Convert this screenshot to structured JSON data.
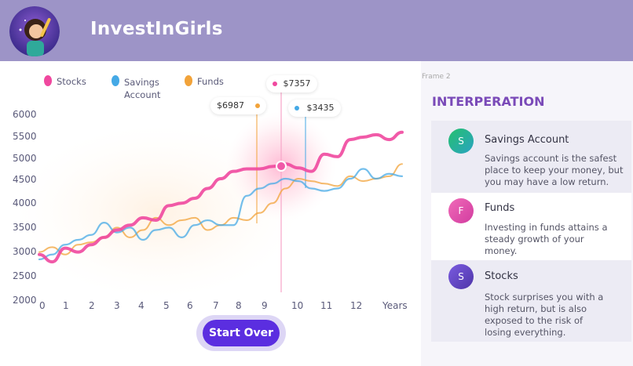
{
  "header": {
    "brand": "InvestInGirls",
    "bg_color": "#9d94c7"
  },
  "legend": [
    {
      "label": "Stocks",
      "color": "#f0489f"
    },
    {
      "label": "Savings",
      "label2": "Account",
      "color": "#45a9e6"
    },
    {
      "label": "Funds",
      "color": "#f2a33a"
    }
  ],
  "chart_data": {
    "type": "line",
    "x_ticks": [
      "0",
      "1",
      "2",
      "3",
      "4",
      "5",
      "6",
      "7",
      "8",
      "9",
      "10",
      "11",
      "12",
      "Years"
    ],
    "y_ticks": [
      "6000",
      "5500",
      "5000",
      "4500",
      "4000",
      "3500",
      "3000",
      "2500",
      "2000"
    ],
    "ylim": [
      2000,
      6000
    ],
    "series": [
      {
        "name": "Stocks",
        "color": "#f0489f",
        "x": [
          0,
          0.5,
          1,
          1.5,
          2,
          2.5,
          3,
          3.5,
          4,
          4.5,
          5,
          5.5,
          6,
          6.5,
          7,
          7.5,
          8,
          8.5,
          9,
          9.5,
          10,
          10.5,
          11,
          11.5,
          12,
          12.5,
          13,
          13.5,
          14
        ],
        "y": [
          2950,
          2800,
          3080,
          3000,
          3150,
          3300,
          3450,
          3550,
          3700,
          3650,
          3950,
          4000,
          4100,
          4300,
          4500,
          4650,
          4700,
          4700,
          4750,
          4800,
          4720,
          4650,
          5000,
          4950,
          5300,
          5350,
          5400,
          5300,
          5450
        ]
      },
      {
        "name": "Savings Account",
        "color": "#45a9e6",
        "x": [
          0,
          0.5,
          1,
          1.5,
          2,
          2.5,
          3,
          3.5,
          4,
          4.5,
          5,
          5.5,
          6,
          6.5,
          7,
          7.5,
          8,
          8.5,
          9,
          9.5,
          10,
          10.5,
          11,
          11.5,
          12,
          12.5,
          13,
          13.5,
          14
        ],
        "y": [
          2850,
          2950,
          3150,
          3250,
          3350,
          3600,
          3400,
          3500,
          3250,
          3450,
          3500,
          3300,
          3550,
          3650,
          3550,
          3550,
          4150,
          4300,
          4400,
          4500,
          4450,
          4300,
          4250,
          4300,
          4500,
          4700,
          4500,
          4600,
          4550
        ]
      },
      {
        "name": "Funds",
        "color": "#f2a33a",
        "x": [
          0,
          0.5,
          1,
          1.5,
          2,
          2.5,
          3,
          3.5,
          4,
          4.5,
          5,
          5.5,
          6,
          6.5,
          7,
          7.5,
          8,
          8.5,
          9,
          9.5,
          10,
          10.5,
          11,
          11.5,
          12,
          12.5,
          13,
          13.5,
          14
        ],
        "y": [
          3000,
          3100,
          2950,
          3150,
          3200,
          3300,
          3500,
          3300,
          3450,
          3700,
          3550,
          3650,
          3700,
          3450,
          3550,
          3700,
          3650,
          3800,
          4000,
          4300,
          4500,
          4450,
          4400,
          4350,
          4550,
          4450,
          4500,
          4550,
          4800
        ]
      }
    ],
    "tooltips": [
      {
        "label": "$6987",
        "color": "#f2a33a"
      },
      {
        "label": "$7357",
        "color": "#f0489f"
      },
      {
        "label": "$3435",
        "color": "#45a9e6"
      }
    ]
  },
  "actions": {
    "start_over": "Start Over"
  },
  "panel": {
    "frame_label": "Frame 2",
    "title": "INTERPERATION",
    "cards": [
      {
        "badge": "S",
        "title": "Savings Account",
        "lines": [
          "Savings account is the safest",
          "place to keep your money, but",
          "you may have a low return."
        ],
        "color": "#2cb57a"
      },
      {
        "badge": "F",
        "title": "Funds",
        "lines": [
          "Investing in funds attains a",
          "steady growth of your",
          "money."
        ],
        "color": "#e84aa8"
      },
      {
        "badge": "S",
        "title": "Stocks",
        "lines": [
          "Stock surprises you with a",
          "high return, but is also",
          "exposed to the risk of",
          "losing everything."
        ],
        "color": "#6a4ec8"
      }
    ]
  }
}
